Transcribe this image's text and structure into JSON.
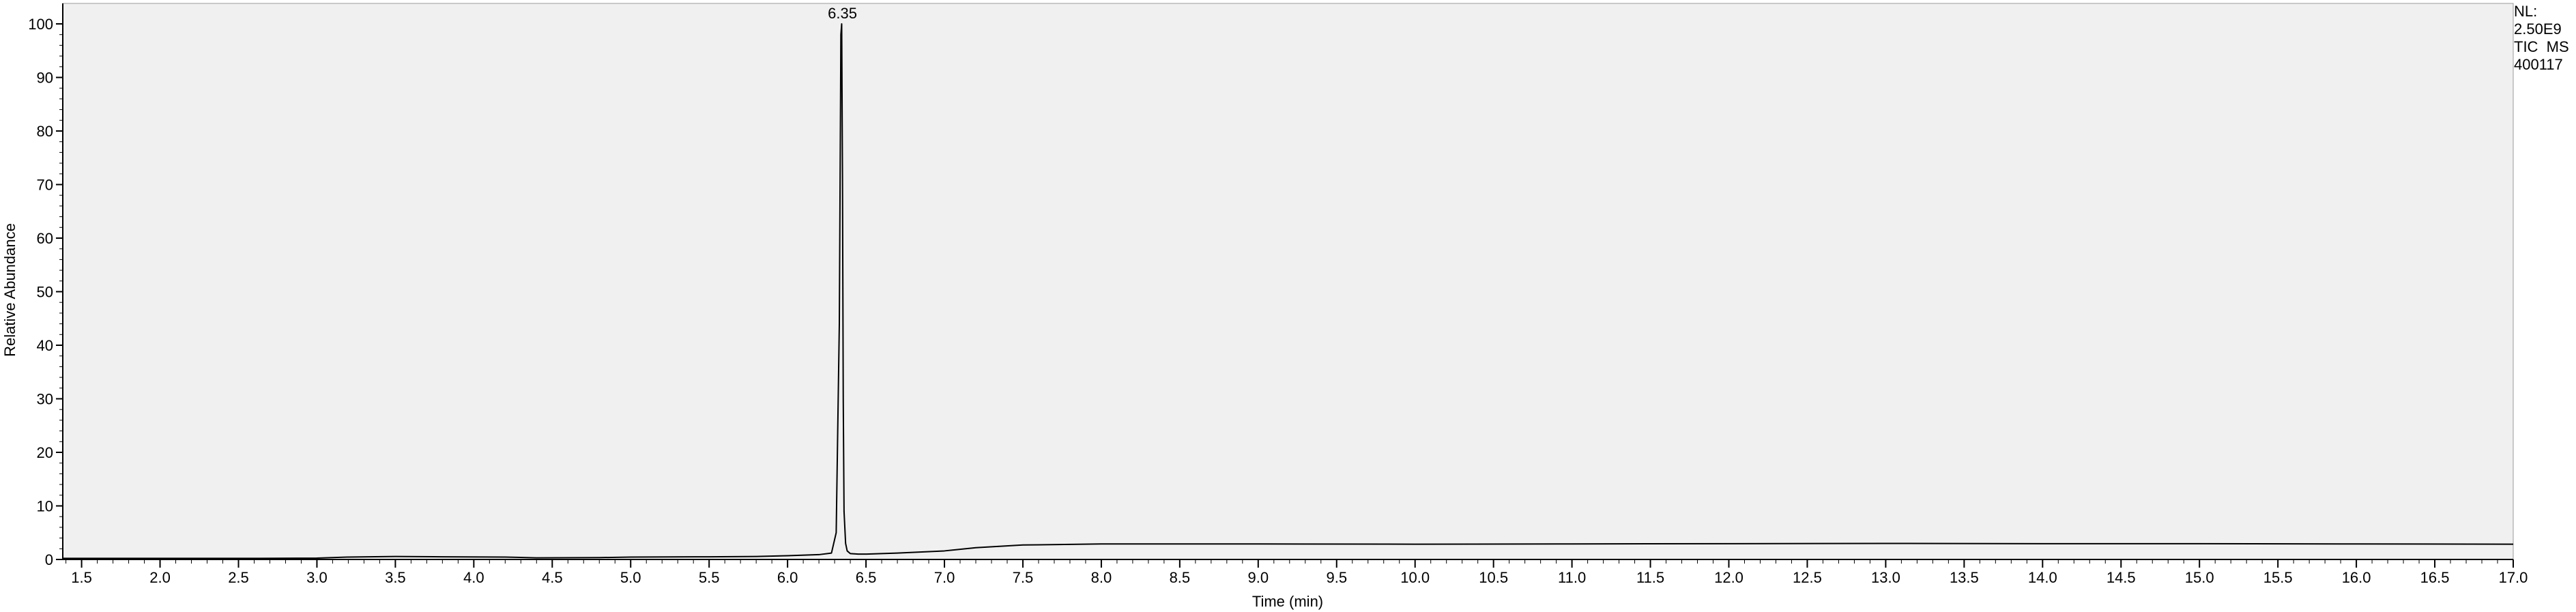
{
  "chart_data": {
    "type": "line",
    "title": "",
    "xlabel": "Time (min)",
    "ylabel": "Relative Abundance",
    "xlim": [
      1.38,
      17.0
    ],
    "ylim": [
      0,
      100
    ],
    "x_ticks": [
      "1.5",
      "2.0",
      "2.5",
      "3.0",
      "3.5",
      "4.0",
      "4.5",
      "5.0",
      "5.5",
      "6.0",
      "6.5",
      "7.0",
      "7.5",
      "8.0",
      "8.5",
      "9.0",
      "9.5",
      "10.0",
      "10.5",
      "11.0",
      "11.5",
      "12.0",
      "12.5",
      "13.0",
      "13.5",
      "14.0",
      "14.5",
      "15.0",
      "15.5",
      "16.0",
      "16.5",
      "17.0"
    ],
    "y_ticks": [
      "0",
      "10",
      "20",
      "30",
      "40",
      "50",
      "60",
      "70",
      "80",
      "90",
      "100"
    ],
    "peak_labels": [
      {
        "x": 6.35,
        "y": 100,
        "label": "6.35"
      }
    ],
    "series": [
      {
        "x": [
          1.38,
          2.0,
          2.5,
          3.0,
          3.2,
          3.5,
          3.8,
          4.2,
          4.4,
          4.8,
          5.0,
          5.5,
          5.8,
          6.0,
          6.2,
          6.28,
          6.31,
          6.33,
          6.34,
          6.345,
          6.35,
          6.355,
          6.36,
          6.37,
          6.38,
          6.4,
          6.45,
          6.5,
          6.7,
          7.0,
          7.2,
          7.5,
          8.0,
          9.0,
          10.0,
          11.0,
          12.0,
          13.0,
          14.0,
          15.0,
          16.0,
          17.0
        ],
        "y": [
          0.2,
          0.2,
          0.2,
          0.25,
          0.45,
          0.55,
          0.5,
          0.45,
          0.3,
          0.35,
          0.45,
          0.5,
          0.55,
          0.7,
          0.9,
          1.2,
          5,
          44,
          98,
          100,
          72,
          30,
          9,
          3,
          1.6,
          1.1,
          1.0,
          1.0,
          1.2,
          1.6,
          2.2,
          2.7,
          2.9,
          2.9,
          2.85,
          2.9,
          2.95,
          3.0,
          2.95,
          2.95,
          2.9,
          2.85
        ]
      }
    ]
  },
  "info": {
    "nl_label": "NL:",
    "nl_value": "2.50E9",
    "scan": "TIC  MS",
    "file": "400117"
  }
}
